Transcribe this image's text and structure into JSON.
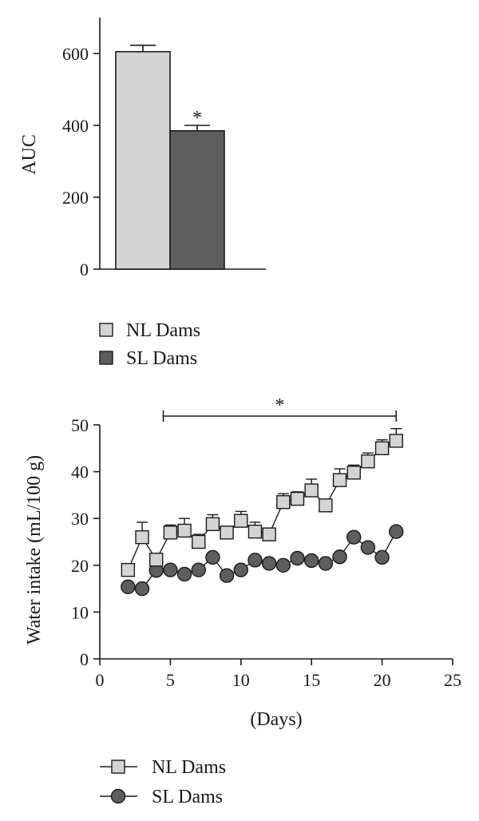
{
  "chart_data": [
    {
      "type": "bar",
      "ylabel": "AUC",
      "xlabel": "",
      "ylim": [
        0,
        700
      ],
      "yticks": [
        0,
        200,
        400,
        600
      ],
      "categories": [
        "NL Dams",
        "SL Dams"
      ],
      "values": [
        605,
        385
      ],
      "errors": [
        18,
        15
      ],
      "colors": [
        "#d4d4d4",
        "#5e5e5e"
      ],
      "annotations": [
        {
          "text": "*",
          "category": "SL Dams"
        }
      ],
      "legend": {
        "placement": "below",
        "entries": [
          "NL Dams",
          "SL Dams"
        ]
      }
    },
    {
      "type": "line",
      "xlabel": "(Days)",
      "ylabel": "Water intake (mL/100 g)",
      "xlim": [
        0,
        25
      ],
      "ylim": [
        0,
        50
      ],
      "xticks": [
        0,
        5,
        10,
        15,
        20,
        25
      ],
      "yticks": [
        0,
        10,
        20,
        30,
        40,
        50
      ],
      "x": [
        2,
        3,
        4,
        5,
        6,
        7,
        8,
        9,
        10,
        11,
        12,
        13,
        14,
        15,
        16,
        17,
        18,
        19,
        20,
        21
      ],
      "series": [
        {
          "name": "NL Dams",
          "marker": "square",
          "color": "#d4d4d4",
          "values": [
            19,
            26,
            21.2,
            27,
            27.4,
            25,
            28.8,
            27,
            29.5,
            27.2,
            26.6,
            33.5,
            34.2,
            36,
            32.8,
            38.2,
            39.8,
            42.2,
            45,
            46.6
          ],
          "errors": [
            0,
            3.2,
            0,
            1.6,
            2.6,
            1.6,
            2.0,
            0,
            2.0,
            2.0,
            0,
            1.8,
            1.5,
            2.4,
            1.2,
            2.4,
            1.6,
            1.8,
            1.8,
            2.6
          ]
        },
        {
          "name": "SL Dams",
          "marker": "circle",
          "color": "#5e5e5e",
          "values": [
            15.4,
            15,
            18.9,
            19,
            18.1,
            19,
            21.7,
            17.8,
            19,
            21.1,
            20.4,
            20,
            21.5,
            21,
            20.4,
            21.8,
            26,
            23.8,
            21.7,
            27.2
          ]
        }
      ],
      "annotations": [
        {
          "text": "*",
          "bracket_x": [
            4.5,
            21
          ]
        }
      ],
      "legend": {
        "placement": "below",
        "entries": [
          "NL Dams",
          "SL Dams"
        ]
      }
    }
  ]
}
